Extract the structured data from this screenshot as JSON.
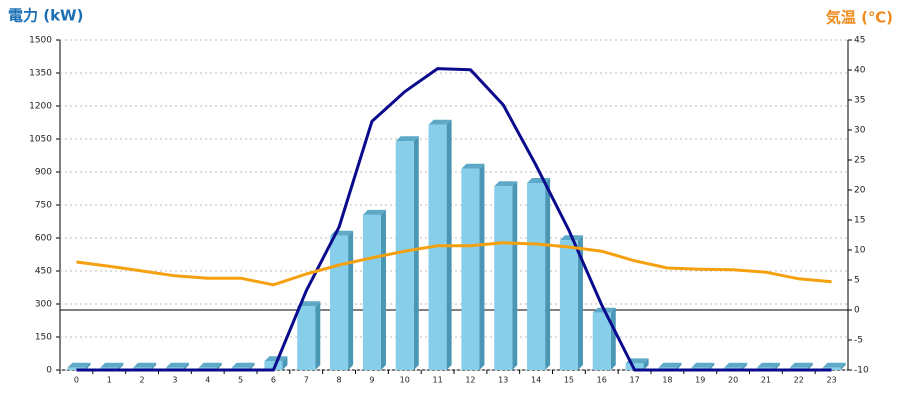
{
  "chart_data": {
    "type": "bar-line",
    "title": "電力 (kW)",
    "y2_title": "気温 (℃)",
    "categories": [
      "0",
      "1",
      "2",
      "3",
      "4",
      "5",
      "6",
      "7",
      "8",
      "9",
      "10",
      "11",
      "12",
      "13",
      "14",
      "15",
      "16",
      "17",
      "18",
      "19",
      "20",
      "21",
      "22",
      "23"
    ],
    "series": [
      {
        "type": "bar",
        "color": "#87ceeb",
        "values": [
          10,
          10,
          10,
          10,
          10,
          10,
          40,
          290,
          610,
          705,
          1040,
          1115,
          915,
          835,
          850,
          590,
          260,
          30,
          10,
          10,
          10,
          10,
          10,
          10
        ]
      },
      {
        "type": "line",
        "color": "#0a0a8c",
        "values": [
          0,
          0,
          0,
          0,
          0,
          0,
          0,
          360,
          650,
          1130,
          1265,
          1370,
          1365,
          1205,
          930,
          635,
          295,
          0,
          0,
          0,
          0,
          0,
          0,
          0
        ]
      },
      {
        "type": "line",
        "color": "#f5a00f",
        "axis": "y2",
        "values": [
          8,
          7.3,
          6.5,
          5.7,
          5.3,
          5.3,
          4.2,
          6,
          7.5,
          8.7,
          9.8,
          10.7,
          10.7,
          11.2,
          11,
          10.5,
          9.8,
          8.2,
          7,
          6.8,
          6.7,
          6.3,
          5.2,
          4.7
        ]
      }
    ],
    "ylim": [
      0,
      1500
    ],
    "yticks": [
      0,
      150,
      300,
      450,
      600,
      750,
      900,
      1050,
      1200,
      1350,
      1500
    ],
    "y2lim": [
      -10,
      45
    ],
    "y2ticks": [
      -10,
      -5,
      0,
      5,
      10,
      15,
      20,
      25,
      30,
      35,
      40,
      45
    ],
    "grid": true
  }
}
